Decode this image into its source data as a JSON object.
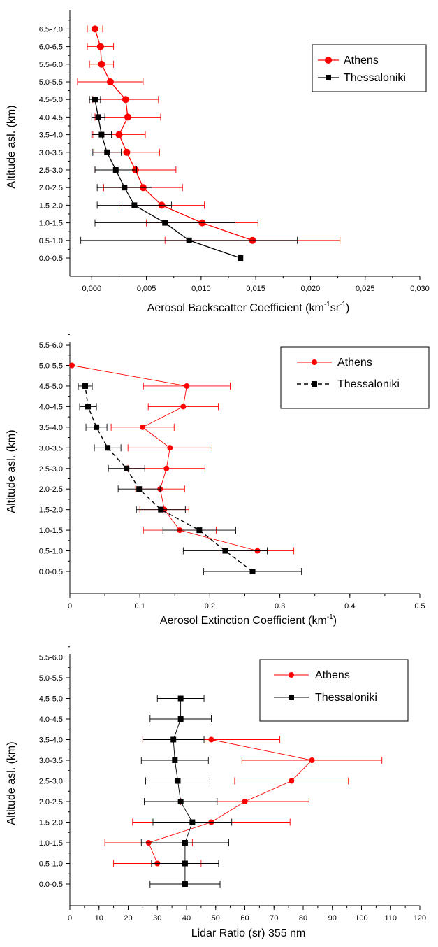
{
  "chart_data": [
    {
      "type": "line",
      "xlabel": "Aerosol Backscatter Coefficient (km",
      "xlabel_sup1": "-1",
      "xlabel_mid": "sr",
      "xlabel_sup2": "-1",
      "xlabel_end": ")",
      "ylabel": "Altitude asl. (km)",
      "xlim": [
        -0.002,
        0.03
      ],
      "xticks": [
        "0,000",
        "0,005",
        "0,010",
        "0,015",
        "0,020",
        "0,025",
        "0,030"
      ],
      "categories": [
        "0.0-0.5",
        "0.5-1.0",
        "1.0-1.5",
        "1.5-2.0",
        "2.0-2.5",
        "2.5-3.0",
        "3.0-3.5",
        "3.5-4.0",
        "4.0-4.5",
        "4.5-5.0",
        "5.0-5.5",
        "5.5-6.0",
        "6.0-6.5",
        "6.5-7.0"
      ],
      "legend_position": "top-right",
      "series": [
        {
          "name": "Athens",
          "color": "#ff0000",
          "marker": "circle",
          "points": [
            {
              "y": "0.5-1.0",
              "x": 0.0147,
              "err": 0.008
            },
            {
              "y": "1.0-1.5",
              "x": 0.0101,
              "err": 0.0051
            },
            {
              "y": "1.5-2.0",
              "x": 0.0064,
              "err": 0.0039
            },
            {
              "y": "2.0-2.5",
              "x": 0.0047,
              "err": 0.0036
            },
            {
              "y": "2.5-3.0",
              "x": 0.004,
              "err": 0.0037
            },
            {
              "y": "3.0-3.5",
              "x": 0.0032,
              "err": 0.003
            },
            {
              "y": "3.5-4.0",
              "x": 0.0025,
              "err": 0.0024
            },
            {
              "y": "4.0-4.5",
              "x": 0.0033,
              "err": 0.003
            },
            {
              "y": "4.5-5.0",
              "x": 0.0031,
              "err": 0.003
            },
            {
              "y": "5.0-5.5",
              "x": 0.0017,
              "err": 0.003
            },
            {
              "y": "5.5-6.0",
              "x": 0.0009,
              "err": 0.0011
            },
            {
              "y": "6.0-6.5",
              "x": 0.0008,
              "err": 0.0012
            },
            {
              "y": "6.5-7.0",
              "x": 0.0003,
              "err": 0.0007
            }
          ]
        },
        {
          "name": "Thessaloniki",
          "color": "#000000",
          "marker": "square",
          "points": [
            {
              "y": "0.0-0.5",
              "x": 0.0136,
              "err": 0
            },
            {
              "y": "0.5-1.0",
              "x": 0.0089,
              "err": 0.0099
            },
            {
              "y": "1.0-1.5",
              "x": 0.0067,
              "err": 0.0064
            },
            {
              "y": "1.5-2.0",
              "x": 0.0039,
              "err": 0.0034
            },
            {
              "y": "2.0-2.5",
              "x": 0.003,
              "err": 0.0025
            },
            {
              "y": "2.5-3.0",
              "x": 0.0022,
              "err": 0.0019
            },
            {
              "y": "3.0-3.5",
              "x": 0.0014,
              "err": 0.0013
            },
            {
              "y": "3.5-4.0",
              "x": 0.0009,
              "err": 0.0009
            },
            {
              "y": "4.0-4.5",
              "x": 0.0006,
              "err": 0.0006
            },
            {
              "y": "4.5-5.0",
              "x": 0.0003,
              "err": 0.0005
            }
          ]
        }
      ]
    },
    {
      "type": "line",
      "xlabel": "Aerosol Extinction Coefficient (km",
      "xlabel_sup1": "-1",
      "xlabel_end": ")",
      "ylabel": "Altitude asl. (km)",
      "xlim": [
        0,
        0.5
      ],
      "xticks": [
        "0",
        "0.1",
        "0.2",
        "0.3",
        "0.4",
        "0.5"
      ],
      "categories": [
        "0.0-0.5",
        "0.5-1.0",
        "1.0-1.5",
        "1.5-2.0",
        "2.0-2.5",
        "2.5-3.0",
        "3.0-3.5",
        "3.5-4.0",
        "4.0-4.5",
        "4.5-5.0",
        "5.0-5.5",
        "5.5-6.0"
      ],
      "legend_position": "top-right",
      "series": [
        {
          "name": "Athens",
          "color": "#ff0000",
          "marker": "circle",
          "points": [
            {
              "y": "0.5-1.0",
              "x": 0.268,
              "err": 0.052
            },
            {
              "y": "1.0-1.5",
              "x": 0.157,
              "err": 0.052
            },
            {
              "y": "1.5-2.0",
              "x": 0.135,
              "err": 0.035
            },
            {
              "y": "2.0-2.5",
              "x": 0.129,
              "err": 0.035
            },
            {
              "y": "2.5-3.0",
              "x": 0.138,
              "err": 0.055
            },
            {
              "y": "3.0-3.5",
              "x": 0.143,
              "err": 0.06
            },
            {
              "y": "3.5-4.0",
              "x": 0.104,
              "err": 0.045
            },
            {
              "y": "4.0-4.5",
              "x": 0.162,
              "err": 0.05
            },
            {
              "y": "4.5-5.0",
              "x": 0.167,
              "err": 0.062
            },
            {
              "y": "5.0-5.5",
              "x": 0.003,
              "err": 0
            }
          ]
        },
        {
          "name": "Thessaloniki",
          "color": "#000000",
          "marker": "square",
          "points": [
            {
              "y": "0.0-0.5",
              "x": 0.261,
              "err": 0.07
            },
            {
              "y": "0.5-1.0",
              "x": 0.222,
              "err": 0.06
            },
            {
              "y": "1.0-1.5",
              "x": 0.185,
              "err": 0.052
            },
            {
              "y": "1.5-2.0",
              "x": 0.13,
              "err": 0.035
            },
            {
              "y": "2.0-2.5",
              "x": 0.099,
              "err": 0.03
            },
            {
              "y": "2.5-3.0",
              "x": 0.081,
              "err": 0.026
            },
            {
              "y": "3.0-3.5",
              "x": 0.054,
              "err": 0.019
            },
            {
              "y": "3.5-4.0",
              "x": 0.038,
              "err": 0.015
            },
            {
              "y": "4.0-4.5",
              "x": 0.026,
              "err": 0.012
            },
            {
              "y": "4.5-5.0",
              "x": 0.022,
              "err": 0.01
            }
          ]
        }
      ]
    },
    {
      "type": "line",
      "xlabel": "Lidar Ratio (sr) 355 nm",
      "ylabel": "Altitude asl. (km)",
      "xlim": [
        0,
        120
      ],
      "xticks": [
        "0",
        "10",
        "20",
        "30",
        "40",
        "50",
        "60",
        "70",
        "80",
        "90",
        "100",
        "110",
        "120"
      ],
      "categories": [
        "0.0-0.5",
        "0.5-1.0",
        "1.0-1.5",
        "1.5-2.0",
        "2.0-2.5",
        "2.5-3.0",
        "3.0-3.5",
        "3.5-4.0",
        "4.0-4.5",
        "4.5-5.0",
        "5.0-5.5",
        "5.5-6.0"
      ],
      "legend_position": "top-right",
      "series": [
        {
          "name": "Athens",
          "color": "#ff0000",
          "marker": "circle",
          "points": [
            {
              "y": "0.5-1.0",
              "x": 30,
              "err": 15
            },
            {
              "y": "1.0-1.5",
              "x": 27,
              "err": 15
            },
            {
              "y": "1.5-2.0",
              "x": 48.5,
              "err": 27
            },
            {
              "y": "2.0-2.5",
              "x": 60,
              "err": 22
            },
            {
              "y": "2.5-3.0",
              "x": 76,
              "err": 19.5
            },
            {
              "y": "3.0-3.5",
              "x": 83,
              "err": 24
            },
            {
              "y": "3.5-4.0",
              "x": 48.5,
              "err": 23.5
            }
          ]
        },
        {
          "name": "Thessaloniki",
          "color": "#000000",
          "marker": "square",
          "points": [
            {
              "y": "0.0-0.5",
              "x": 39.5,
              "err": 12
            },
            {
              "y": "0.5-1.0",
              "x": 39.5,
              "err": 11.5
            },
            {
              "y": "1.0-1.5",
              "x": 39.5,
              "err": 15
            },
            {
              "y": "1.5-2.0",
              "x": 42,
              "err": 13.5
            },
            {
              "y": "2.0-2.5",
              "x": 38,
              "err": 12.5
            },
            {
              "y": "2.5-3.0",
              "x": 37,
              "err": 11
            },
            {
              "y": "3.0-3.5",
              "x": 36,
              "err": 11.5
            },
            {
              "y": "3.5-4.0",
              "x": 35.5,
              "err": 10.5
            },
            {
              "y": "4.0-4.5",
              "x": 38,
              "err": 10.5
            },
            {
              "y": "4.5-5.0",
              "x": 38,
              "err": 8
            }
          ]
        }
      ]
    }
  ]
}
